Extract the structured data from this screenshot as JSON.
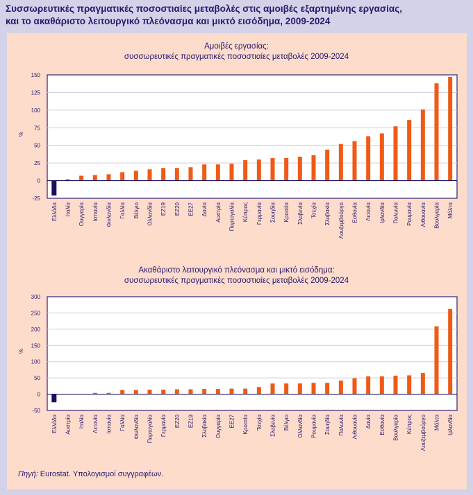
{
  "title_line1": "Συσσωρευτικές πραγματικές ποσοστιαίες μεταβολές στις αμοιβές εξαρτημένης εργασίας,",
  "title_line2": "και το ακαθάριστο λειτουργικό πλεόνασμα και μικτό εισόδημα, 2009-2024",
  "source_label": "Πηγή:",
  "source_text": " Eurostat. Υπολογισμοί συγγραφέων.",
  "colors": {
    "bar": "#f05a14",
    "greece": "#1e0f5c",
    "axis": "#5a4a8a",
    "grid": "#d0cce0"
  },
  "chart_data": [
    {
      "type": "bar",
      "title_line1": "Αμοιβές εργασίας:",
      "title_line2": "συσσωρευτικές πραγματικές ποσοστιαίες μεταβολές 2009-2024",
      "ylabel": "%",
      "ylim": [
        -25,
        150
      ],
      "yticks": [
        -25,
        0,
        25,
        50,
        75,
        100,
        125,
        150
      ],
      "grid": true,
      "categories": [
        "Ελλάδα",
        "Ιταλία",
        "Ουγγαρία",
        "Ισπανία",
        "Φινλανδία",
        "Γαλλία",
        "Βέλγιο",
        "Ολλανδία",
        "ΕΖ19",
        "ΕΖ20",
        "ΕΕ27",
        "Δανία",
        "Αυστρία",
        "Πορτογαλία",
        "Κύπρος",
        "Γερμανία",
        "Σουηδία",
        "Κροατία",
        "Σλοβενία",
        "Τσεχία",
        "Σλοβακία",
        "Λουξεμβούργο",
        "Εσθονία",
        "Λετονία",
        "Ιρλανδία",
        "Πολωνία",
        "Ρουμανία",
        "Λιθουανία",
        "Βουλγαρία",
        "Μάλτα"
      ],
      "values": [
        -21,
        2,
        7,
        8,
        9,
        12,
        14,
        16,
        18,
        18,
        19,
        23,
        23,
        24,
        29,
        30,
        32,
        32,
        34,
        36,
        44,
        52,
        56,
        63,
        67,
        77,
        86,
        101,
        138,
        147
      ]
    },
    {
      "type": "bar",
      "title_line1": "Ακαθάριστο λειτουργικό πλεόνασμα και μικτό εισόδημα:",
      "title_line2": "συσσωρευτικές πραγματικές ποσοστιαίες μεταβολές 2009-2024",
      "ylabel": "%",
      "ylim": [
        -50,
        300
      ],
      "yticks": [
        -50,
        0,
        50,
        100,
        150,
        200,
        250,
        300
      ],
      "grid": true,
      "categories": [
        "Ελλάδα",
        "Αυστρία",
        "Ιταλία",
        "Λετονία",
        "Ισπανία",
        "Γαλλία",
        "Φινλανδία",
        "Πορτογαλία",
        "Γερμανία",
        "ΕΖ20",
        "ΕΖ19",
        "Σλοβακία",
        "Ουγγαρία",
        "ΕΕ27",
        "Κροατία",
        "Τσεχία",
        "Σλοβενία",
        "Βέλγιο",
        "Ολλανδία",
        "Ρουμανία",
        "Σουηδία",
        "Πολωνία",
        "Λιθουανία",
        "Δανία",
        "Εσθονία",
        "Βουλγαρία",
        "Κύπρος",
        "Λουξεμβούργο",
        "Μάλτα",
        "Ιρλανδία"
      ],
      "values": [
        -25,
        0,
        1,
        4,
        4,
        13,
        13,
        14,
        14,
        15,
        15,
        16,
        16,
        17,
        17,
        22,
        33,
        33,
        33,
        35,
        35,
        42,
        49,
        55,
        55,
        57,
        58,
        65,
        209,
        262
      ]
    }
  ]
}
